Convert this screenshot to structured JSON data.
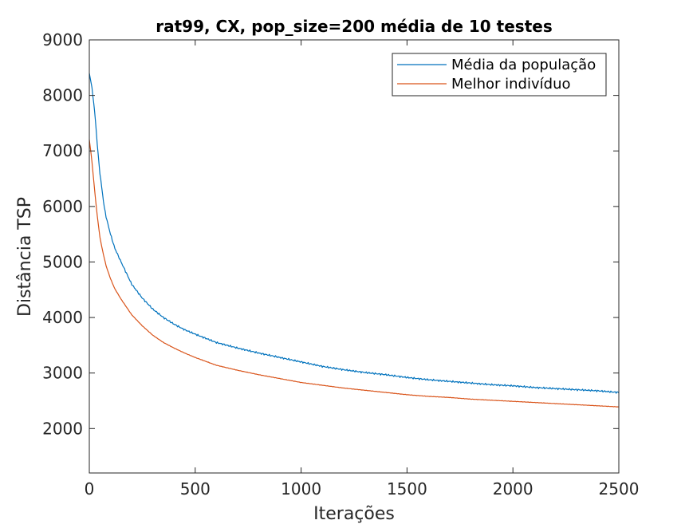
{
  "chart_data": {
    "type": "line",
    "title": "rat99, CX, pop_size=200 média de 10 testes",
    "xlabel": "Iterações",
    "ylabel": "Distância TSP",
    "xlim": [
      0,
      2500
    ],
    "ylim": [
      1200,
      9000
    ],
    "xticks": [
      0,
      500,
      1000,
      1500,
      2000,
      2500
    ],
    "yticks": [
      2000,
      3000,
      4000,
      5000,
      6000,
      7000,
      8000,
      9000
    ],
    "grid": false,
    "legend_position": "top-right",
    "series": [
      {
        "name": "Média da população",
        "color": "#0072bd",
        "x": [
          0,
          10,
          20,
          30,
          40,
          50,
          60,
          70,
          80,
          100,
          120,
          150,
          200,
          250,
          300,
          350,
          400,
          450,
          500,
          600,
          700,
          800,
          900,
          1000,
          1100,
          1200,
          1300,
          1400,
          1500,
          1600,
          1700,
          1800,
          1900,
          2000,
          2100,
          2200,
          2300,
          2400,
          2500
        ],
        "y": [
          8400,
          8200,
          7900,
          7500,
          7000,
          6600,
          6300,
          6000,
          5800,
          5500,
          5250,
          5000,
          4600,
          4350,
          4150,
          4000,
          3880,
          3780,
          3700,
          3550,
          3450,
          3360,
          3280,
          3200,
          3120,
          3060,
          3010,
          2970,
          2920,
          2880,
          2850,
          2820,
          2790,
          2770,
          2740,
          2720,
          2700,
          2680,
          2650
        ]
      },
      {
        "name": "Melhor indivíduo",
        "color": "#d95319",
        "x": [
          0,
          10,
          20,
          30,
          40,
          50,
          60,
          70,
          80,
          100,
          120,
          150,
          200,
          250,
          300,
          350,
          400,
          450,
          500,
          600,
          700,
          800,
          900,
          1000,
          1100,
          1200,
          1300,
          1400,
          1500,
          1600,
          1700,
          1800,
          1900,
          2000,
          2100,
          2200,
          2300,
          2400,
          2500
        ],
        "y": [
          7200,
          6900,
          6500,
          6100,
          5750,
          5450,
          5250,
          5080,
          4920,
          4700,
          4520,
          4330,
          4050,
          3850,
          3680,
          3550,
          3450,
          3360,
          3280,
          3140,
          3050,
          2970,
          2900,
          2830,
          2780,
          2730,
          2690,
          2650,
          2610,
          2580,
          2560,
          2530,
          2510,
          2490,
          2470,
          2450,
          2430,
          2410,
          2390
        ]
      }
    ]
  }
}
